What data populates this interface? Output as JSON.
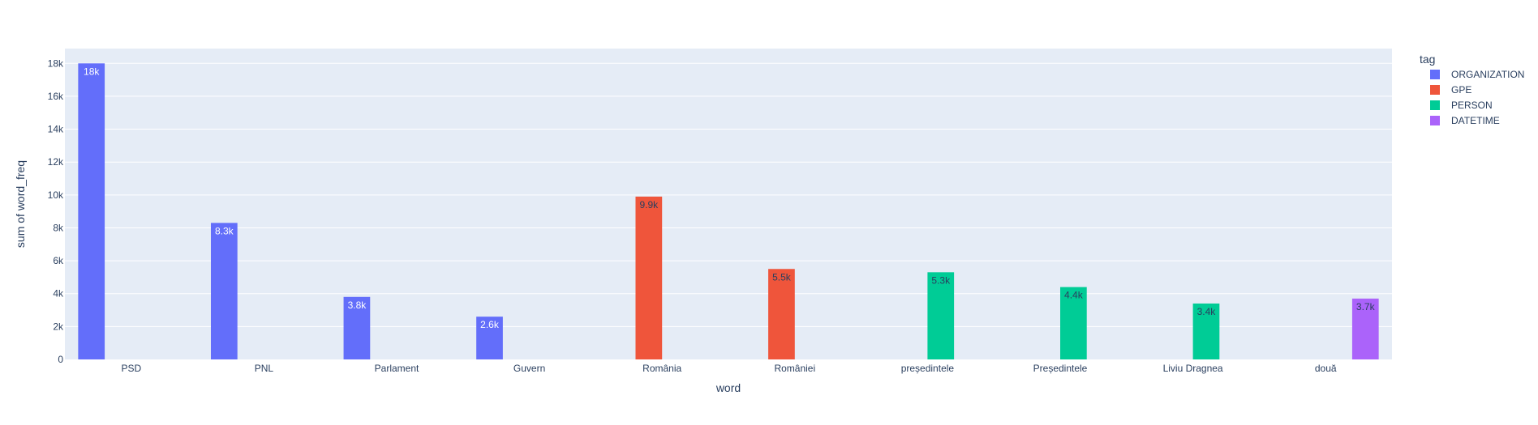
{
  "chart_data": {
    "type": "bar",
    "barmode": "group",
    "xlabel": "word",
    "ylabel": "sum of word_freq",
    "ylim": [
      0,
      18900
    ],
    "yticks": [
      0,
      2000,
      4000,
      6000,
      8000,
      10000,
      12000,
      14000,
      16000,
      18000
    ],
    "ytick_labels": [
      "0",
      "2k",
      "4k",
      "6k",
      "8k",
      "10k",
      "12k",
      "14k",
      "16k",
      "18k"
    ],
    "grid": true,
    "legend": {
      "title": "tag",
      "placement": "right"
    },
    "categories": [
      "PSD",
      "PNL",
      "Parlament",
      "Guvern",
      "România",
      "României",
      "președintele",
      "Președintele",
      "Liviu Dragnea",
      "două"
    ],
    "series": [
      {
        "name": "ORGANIZATION",
        "color": "#636efa",
        "label_color": "#ffffff",
        "values": [
          18000,
          8300,
          3800,
          2600,
          null,
          null,
          null,
          null,
          null,
          null
        ],
        "labels": [
          "18k",
          "8.3k",
          "3.8k",
          "2.6k",
          "",
          "",
          "",
          "",
          "",
          ""
        ]
      },
      {
        "name": "GPE",
        "color": "#ef553b",
        "label_color": "#2a3f5f",
        "values": [
          null,
          null,
          null,
          null,
          9900,
          5500,
          null,
          null,
          null,
          null
        ],
        "labels": [
          "",
          "",
          "",
          "",
          "9.9k",
          "5.5k",
          "",
          "",
          "",
          ""
        ]
      },
      {
        "name": "PERSON",
        "color": "#00cc96",
        "label_color": "#2a3f5f",
        "values": [
          null,
          null,
          null,
          null,
          null,
          null,
          5300,
          4400,
          3400,
          null
        ],
        "labels": [
          "",
          "",
          "",
          "",
          "",
          "",
          "5.3k",
          "4.4k",
          "3.4k",
          ""
        ]
      },
      {
        "name": "DATETIME",
        "color": "#ab63fa",
        "label_color": "#2a3f5f",
        "values": [
          null,
          null,
          null,
          null,
          null,
          null,
          null,
          null,
          null,
          3700
        ],
        "labels": [
          "",
          "",
          "",
          "",
          "",
          "",
          "",
          "",
          "",
          "3.7k"
        ]
      }
    ],
    "colors": {
      "plot_bg": "#e5ecf6",
      "grid": "#ffffff",
      "text": "#2a3f5f"
    }
  }
}
